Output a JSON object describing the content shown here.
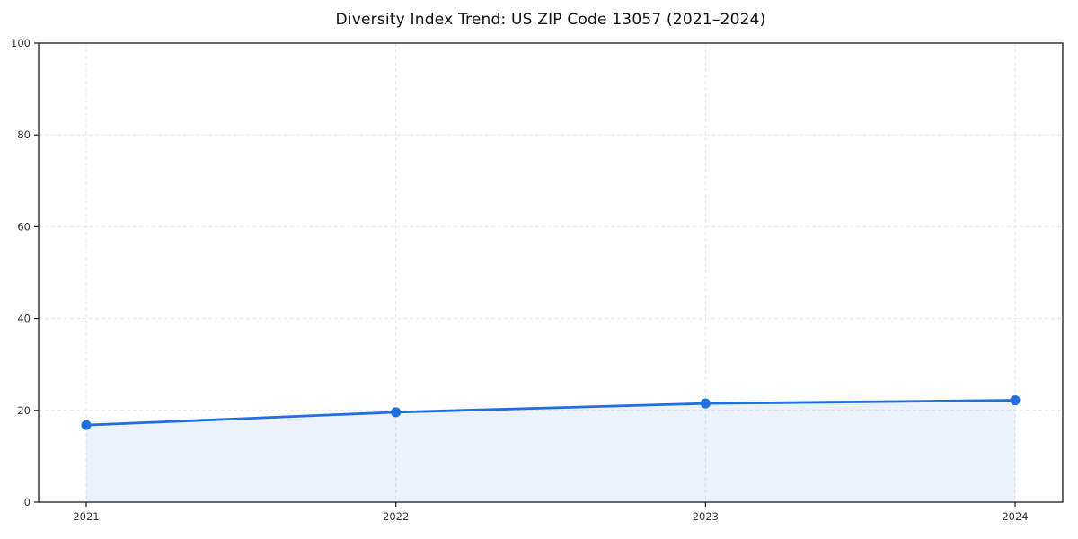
{
  "page": {
    "background": "#ffffff"
  },
  "chart_data": {
    "type": "area",
    "title": "Diversity Index Trend: US ZIP Code 13057 (2021–2024)",
    "categories": [
      2021,
      2022,
      2023,
      2024
    ],
    "x_tick_labels": [
      "2021",
      "2022",
      "2023",
      "2024"
    ],
    "series": [
      {
        "name": "Diversity Index",
        "values": [
          16.8,
          19.6,
          21.5,
          22.2
        ]
      }
    ],
    "xlabel": "",
    "ylabel": "",
    "ylim": [
      0,
      100
    ],
    "yticks": [
      0,
      20,
      40,
      60,
      80,
      100
    ],
    "grid": "both-dashed",
    "legend_position": "none",
    "colors": {
      "line": "#1f6fe0",
      "marker": "#1f6fe0",
      "fill": "#1f6fe0",
      "fill_opacity": "0.09",
      "grid": "#e6e6e6",
      "axis": "#1a1a1a",
      "tick_label": "#333333",
      "title": "#111111"
    }
  }
}
